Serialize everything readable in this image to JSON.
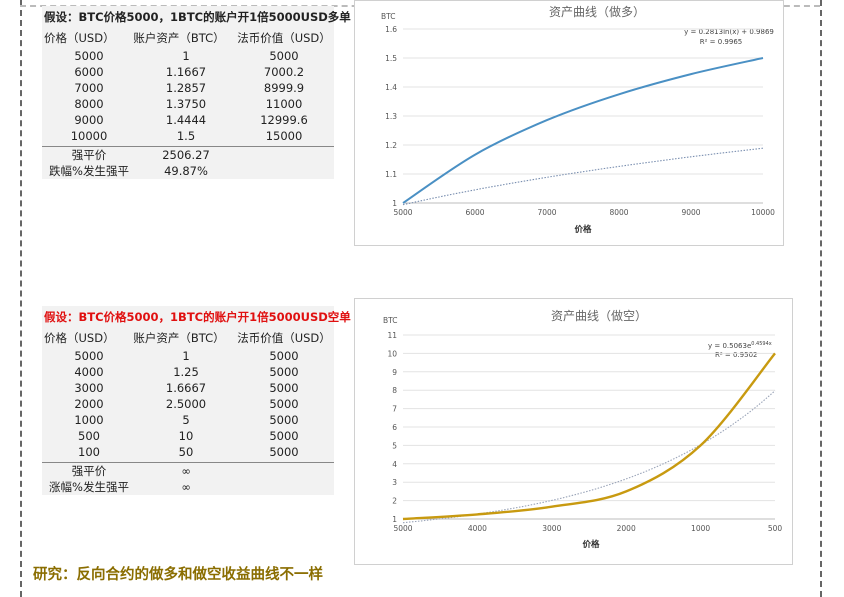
{
  "table1": {
    "title": "假设：BTC价格5000，1BTC的账户开1倍5000USD多单",
    "title_color": "#222222",
    "headers": [
      "价格（USD）",
      "账户资产（BTC）",
      "法币价值（USD）"
    ],
    "rows": [
      [
        "5000",
        "1",
        "5000"
      ],
      [
        "6000",
        "1.1667",
        "7000.2"
      ],
      [
        "7000",
        "1.2857",
        "8999.9"
      ],
      [
        "8000",
        "1.3750",
        "11000"
      ],
      [
        "9000",
        "1.4444",
        "12999.6"
      ],
      [
        "10000",
        "1.5",
        "15000"
      ]
    ],
    "footer_rows": [
      [
        "强平价",
        "2506.27"
      ],
      [
        "跌幅%发生强平",
        "49.87%"
      ]
    ]
  },
  "table2": {
    "title": "假设：BTC价格5000，1BTC的账户开1倍5000USD空单",
    "title_color": "#e01010",
    "headers": [
      "价格（USD）",
      "账户资产（BTC）",
      "法币价值（USD）"
    ],
    "rows": [
      [
        "5000",
        "1",
        "5000"
      ],
      [
        "4000",
        "1.25",
        "5000"
      ],
      [
        "3000",
        "1.6667",
        "5000"
      ],
      [
        "2000",
        "2.5000",
        "5000"
      ],
      [
        "1000",
        "5",
        "5000"
      ],
      [
        "500",
        "10",
        "5000"
      ],
      [
        "100",
        "50",
        "5000"
      ]
    ],
    "footer_rows": [
      [
        "强平价",
        "∞"
      ],
      [
        "涨幅%发生强平",
        "∞"
      ]
    ]
  },
  "chart_data": [
    {
      "type": "line",
      "title": "资产曲线（做多）",
      "xlabel": "价格",
      "ylabel": "BTC",
      "x": [
        5000,
        6000,
        7000,
        8000,
        9000,
        10000
      ],
      "xticks": [
        "5000",
        "6000",
        "7000",
        "8000",
        "9000",
        "10000"
      ],
      "yticks": [
        "1",
        "1.1",
        "1.2",
        "1.3",
        "1.4",
        "1.5",
        "1.6"
      ],
      "xlim": [
        5000,
        10000
      ],
      "ylim": [
        1,
        1.6
      ],
      "series": [
        {
          "values": [
            1,
            1.1667,
            1.2857,
            1.375,
            1.4444,
            1.5
          ],
          "color": "#4a90c4"
        }
      ],
      "trendline": {
        "type": "logarithmic",
        "equation": "y = 0.2813ln(x) + 0.9869",
        "r2": "R² = 0.9965",
        "color": "#7a8fb0"
      }
    },
    {
      "type": "line",
      "title": "资产曲线（做空）",
      "xlabel": "价格",
      "ylabel": "BTC",
      "x": [
        "5000",
        "4000",
        "3000",
        "2000",
        "1000",
        "500"
      ],
      "yticks": [
        "1",
        "2",
        "3",
        "4",
        "5",
        "6",
        "7",
        "8",
        "9",
        "10",
        "11"
      ],
      "ylim": [
        1,
        11
      ],
      "series": [
        {
          "values": [
            1,
            1.25,
            1.6667,
            2.5,
            5,
            10
          ],
          "color": "#c89a10"
        }
      ],
      "trendline": {
        "type": "exponential",
        "equation": "y = 0.5063e",
        "equation_exp": "0.4594x",
        "r2": "R² = 0.9502",
        "color": "#9aa4b8"
      }
    }
  ],
  "footer": {
    "text": "研究：反向合约的做多和做空收益曲线不一样"
  }
}
